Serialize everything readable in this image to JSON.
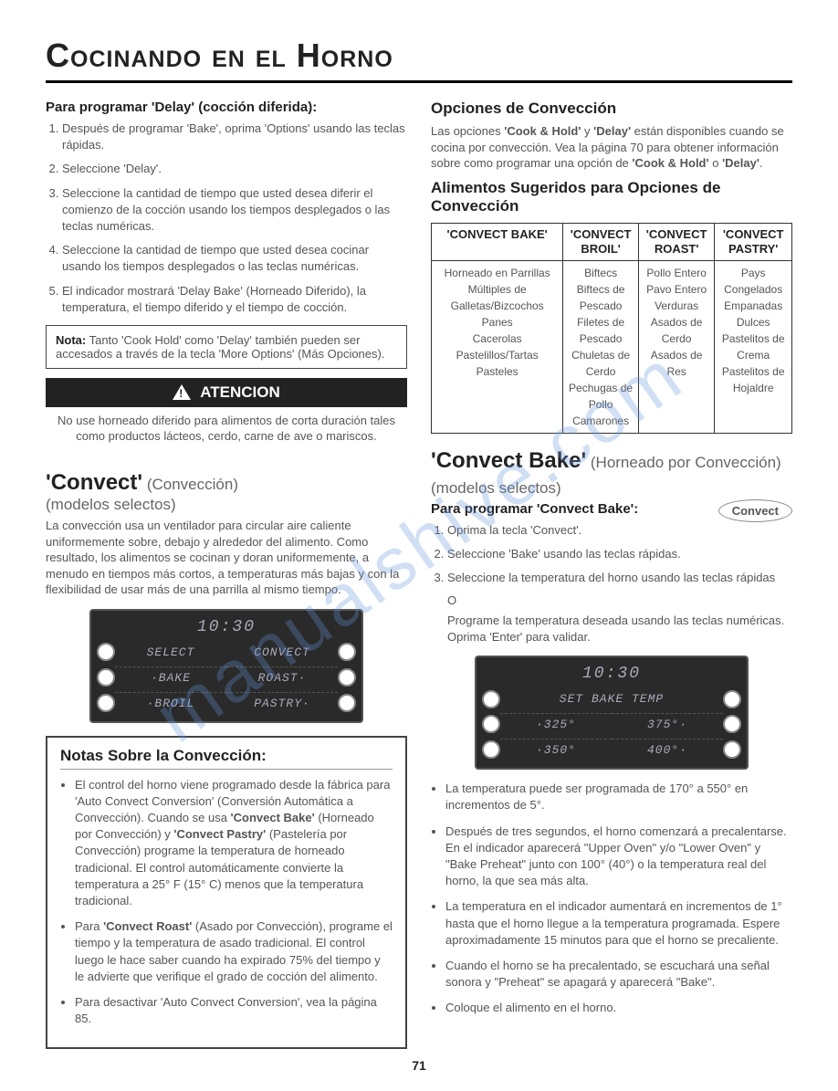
{
  "watermark": "manualshive.com",
  "page_title": "Cocinando en el Horno",
  "page_number": "71",
  "left": {
    "delay_heading": "Para programar 'Delay' (cocción diferida):",
    "delay_steps": [
      "Después de programar 'Bake', oprima 'Options' usando las teclas rápidas.",
      "Seleccione 'Delay'.",
      "Seleccione la cantidad de tiempo que usted desea diferir el comienzo de la cocción usando los tiempos desplegados o las teclas numéricas.",
      "Seleccione la cantidad de tiempo que usted desea cocinar usando los tiempos desplegados o las teclas numéricas.",
      "El indicador mostrará 'Delay Bake' (Horneado Diferido), la temperatura, el tiempo diferido y el tiempo de cocción."
    ],
    "note_label": "Nota:",
    "note_text": " Tanto 'Cook Hold' como 'Delay' también pueden ser accesados a través de la tecla 'More Options' (Más Opciones).",
    "warn_label": "ATENCION",
    "warn_body": "No use horneado diferido para alimentos de corta duración tales como productos lácteos, cerdo, carne de ave o mariscos.",
    "convect_title": "'Convect'",
    "convect_sub": " (Convección)",
    "convect_models": "(modelos selectos)",
    "convect_body": "La convección usa un ventilador para circular aire caliente uniformemente sobre, debajo y alrededor del alimento. Como resultado, los alimentos se cocinan y doran uniformemente, a menudo en tiempos más cortos, a temperaturas más bajas y con la flexibilidad de usar más de una parrilla al mismo tiempo.",
    "display1": {
      "time": "10:30",
      "rows": [
        [
          "SELECT",
          "CONVECT"
        ],
        [
          "·BAKE",
          "ROAST·"
        ],
        [
          "·BROIL",
          "PASTRY·"
        ]
      ]
    },
    "notes_heading": "Notas Sobre la Convección:",
    "notes_items": [
      "El control del horno viene programado desde la fábrica para 'Auto Convect Conversion' (Conversión Automática a Convección). Cuando se usa <b>'Convect Bake'</b> (Horneado por Convección) y <b>'Convect Pastry'</b> (Pastelería por Convección) programe la temperatura de horneado tradicional. El control automáticamente convierte la temperatura a 25° F (15° C) menos que la temperatura tradicional.",
      "Para <b>'Convect Roast'</b> (Asado por Convección), programe el tiempo y la temperatura de asado tradicional. El control luego le hace saber cuando ha expirado 75% del tiempo y le advierte que verifique el grado de cocción del alimento.",
      "Para desactivar 'Auto Convect Conversion', vea la página 85."
    ]
  },
  "right": {
    "opts_heading": "Opciones de Convección",
    "opts_body": "Las opciones <b>'Cook & Hold'</b> y <b>'Delay'</b> están disponibles cuando se cocina por convección. Vea la página 70 para obtener información sobre como programar una opción de <b>'Cook & Hold'</b> o <b>'Delay'</b>.",
    "foods_heading": "Alimentos Sugeridos para Opciones de Convección",
    "table": {
      "headers": [
        "'CONVECT BAKE'",
        "'CONVECT BROIL'",
        "'CONVECT ROAST'",
        "'CONVECT PASTRY'"
      ],
      "cells": [
        "Horneado en Parrillas Múltiples de Galletas/Bizcochos<br>Panes<br>Cacerolas<br>Pastelillos/Tartas<br>Pasteles",
        "Biftecs<br>Biftecs de Pescado<br>Filetes de Pescado<br>Chuletas de Cerdo<br>Pechugas de Pollo<br>Camarones",
        "Pollo Entero<br>Pavo Entero<br>Verduras<br>Asados de Cerdo<br>Asados de Res",
        "Pays Congelados<br>Empanadas Dulces<br>Pastelitos de Crema<br>Pastelitos de Hojaldre"
      ]
    },
    "cbake_title": "'Convect Bake'",
    "cbake_sub": " (Horneado por Convección) (modelos selectos)",
    "cbake_prog_heading": "Para programar 'Convect Bake':",
    "convect_btn": "Convect",
    "cbake_steps": [
      "Oprima la tecla 'Convect'.",
      "Seleccione 'Bake' usando las teclas rápidas.",
      "Seleccione la temperatura del horno usando las teclas rápidas"
    ],
    "cbake_or": "O",
    "cbake_after": "Programe la temperatura deseada usando las teclas numéricas. Oprima 'Enter' para validar.",
    "display2": {
      "time": "10:30",
      "rows": [
        [
          "SET BAKE TEMP",
          ""
        ],
        [
          "·325°",
          "375°·"
        ],
        [
          "·350°",
          "400°·"
        ]
      ]
    },
    "bullets": [
      "La temperatura puede ser programada de 170° a 550° en incrementos de 5°.",
      "Después de tres segundos, el horno comenzará a precalentarse. En el indicador aparecerá \"Upper Oven\" y/o \"Lower Oven\" y \"Bake Preheat\" junto con 100° (40°) o la temperatura real del horno, la que sea más alta.",
      "La temperatura en el indicador aumentará en incrementos de 1° hasta que el horno llegue a la temperatura programada. Espere aproximadamente 15 minutos para que el horno se precaliente.",
      "Cuando el horno se ha precalentado, se escuchará una señal sonora y \"Preheat\" se apagará y aparecerá \"Bake\".",
      "Coloque el alimento en el horno."
    ]
  }
}
